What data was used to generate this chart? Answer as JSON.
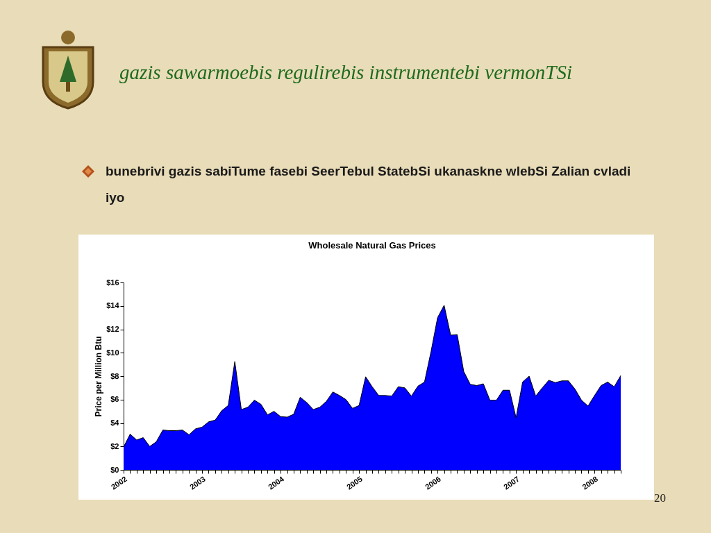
{
  "chart_data": {
    "type": "area",
    "title": "Wholesale Natural Gas Prices",
    "ylabel": "Price per Million Btu",
    "annotations": [
      "gazis sawarmoebis regulirebis instrumentebi vermonTSi",
      "bunebrivi gazis sabiTume fasebi SeerTebul StatebSi ukanaskne wlebSi Zalian cvladi iyo",
      "20"
    ],
    "categories": [
      "2002",
      null,
      null,
      null,
      null,
      null,
      null,
      null,
      null,
      null,
      null,
      null,
      "2003",
      null,
      null,
      null,
      null,
      null,
      null,
      null,
      null,
      null,
      null,
      null,
      "2004",
      null,
      null,
      null,
      null,
      null,
      null,
      null,
      null,
      null,
      null,
      null,
      "2005",
      null,
      null,
      null,
      null,
      null,
      null,
      null,
      null,
      null,
      null,
      null,
      "2006",
      null,
      null,
      null,
      null,
      null,
      null,
      null,
      null,
      null,
      null,
      null,
      "2007",
      null,
      null,
      null,
      null,
      null,
      null,
      null,
      null,
      null,
      null,
      null,
      "2008",
      null,
      null,
      null,
      null
    ],
    "series": [
      {
        "color": "#0000ff",
        "values": [
          1.95,
          3.05,
          2.55,
          2.75,
          2.0,
          2.4,
          3.4,
          3.35,
          3.35,
          3.4,
          3.0,
          3.5,
          3.65,
          4.1,
          4.25,
          5.05,
          5.5,
          9.25,
          5.15,
          5.35,
          5.95,
          5.6,
          4.7,
          5.0,
          4.55,
          4.5,
          4.75,
          6.2,
          5.75,
          5.15,
          5.35,
          5.85,
          6.65,
          6.35,
          6.0,
          5.25,
          5.5,
          7.95,
          7.1,
          6.35,
          6.35,
          6.3,
          7.1,
          7.0,
          6.3,
          7.15,
          7.5,
          10.1,
          13.0,
          14.05,
          11.5,
          11.55,
          8.4,
          7.3,
          7.2,
          7.35,
          5.95,
          5.95,
          6.8,
          6.8,
          4.45,
          7.5,
          8.0,
          6.3,
          7.0,
          7.65,
          7.45,
          7.6,
          7.6,
          6.9,
          5.95,
          5.45,
          6.35,
          7.2,
          7.5,
          7.1,
          8.05
        ]
      }
    ],
    "ylim": [
      0,
      16
    ],
    "yticks": [
      {
        "value": 0,
        "label": "$0"
      },
      {
        "value": 2,
        "label": "$2"
      },
      {
        "value": 4,
        "label": "$4"
      },
      {
        "value": 6,
        "label": "$6"
      },
      {
        "value": 8,
        "label": "$8"
      },
      {
        "value": 10,
        "label": "$10"
      },
      {
        "value": 12,
        "label": "$12"
      },
      {
        "value": 14,
        "label": "$14"
      },
      {
        "value": 16,
        "label": "$16"
      }
    ]
  }
}
